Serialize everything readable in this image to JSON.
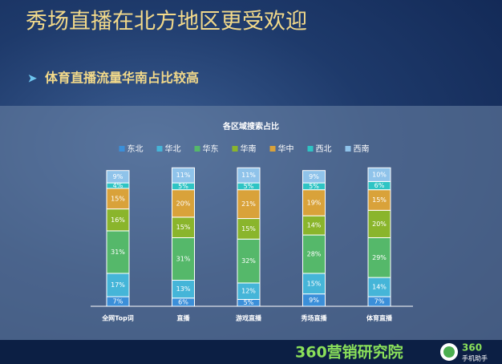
{
  "header": {
    "title": "秀场直播在北方地区更受欢迎",
    "bullet": "体育直播流量华南占比较高"
  },
  "footer": {
    "brand": "360营销研究院",
    "logo_number": "360",
    "logo_text": "手机助手"
  },
  "chart_data": {
    "type": "stacked_bar",
    "title": "各区域搜索占比",
    "categories": [
      "全网Top词",
      "直播",
      "游戏直播",
      "秀场直播",
      "体育直播"
    ],
    "ylim": [
      0,
      100
    ],
    "legend": "top",
    "series": [
      {
        "name": "东北",
        "color": "#3b8fd9",
        "values": [
          7,
          6,
          5,
          9,
          7
        ],
        "value_labels": [
          "7%",
          "6%",
          "5%",
          "9%",
          "7%"
        ]
      },
      {
        "name": "华北",
        "color": "#45b5d8",
        "values": [
          17,
          13,
          12,
          15,
          14
        ],
        "value_labels": [
          "17%",
          "13%",
          "12%",
          "15%",
          "14%"
        ]
      },
      {
        "name": "华东",
        "color": "#55b86a",
        "values": [
          31,
          31,
          32,
          28,
          29
        ],
        "value_labels": [
          "31%",
          "31%",
          "32%",
          "28%",
          "29%"
        ]
      },
      {
        "name": "华南",
        "color": "#8ab52c",
        "values": [
          16,
          15,
          15,
          14,
          20
        ],
        "value_labels": [
          "16%",
          "15%",
          "15%",
          "14%",
          "20%"
        ]
      },
      {
        "name": "华中",
        "color": "#d9a23a",
        "values": [
          15,
          20,
          21,
          19,
          15
        ],
        "value_labels": [
          "15%",
          "20%",
          "21%",
          "19%",
          "15%"
        ]
      },
      {
        "name": "西北",
        "color": "#2ec4c4",
        "values": [
          4,
          5,
          5,
          5,
          6
        ],
        "value_labels": [
          "4%",
          "5%",
          "5%",
          "5%",
          "6%"
        ]
      },
      {
        "name": "西南",
        "color": "#8fc3ea",
        "values": [
          9,
          11,
          11,
          9,
          10
        ],
        "value_labels": [
          "9%",
          "11%",
          "11%",
          "9%",
          "10%"
        ]
      }
    ]
  }
}
